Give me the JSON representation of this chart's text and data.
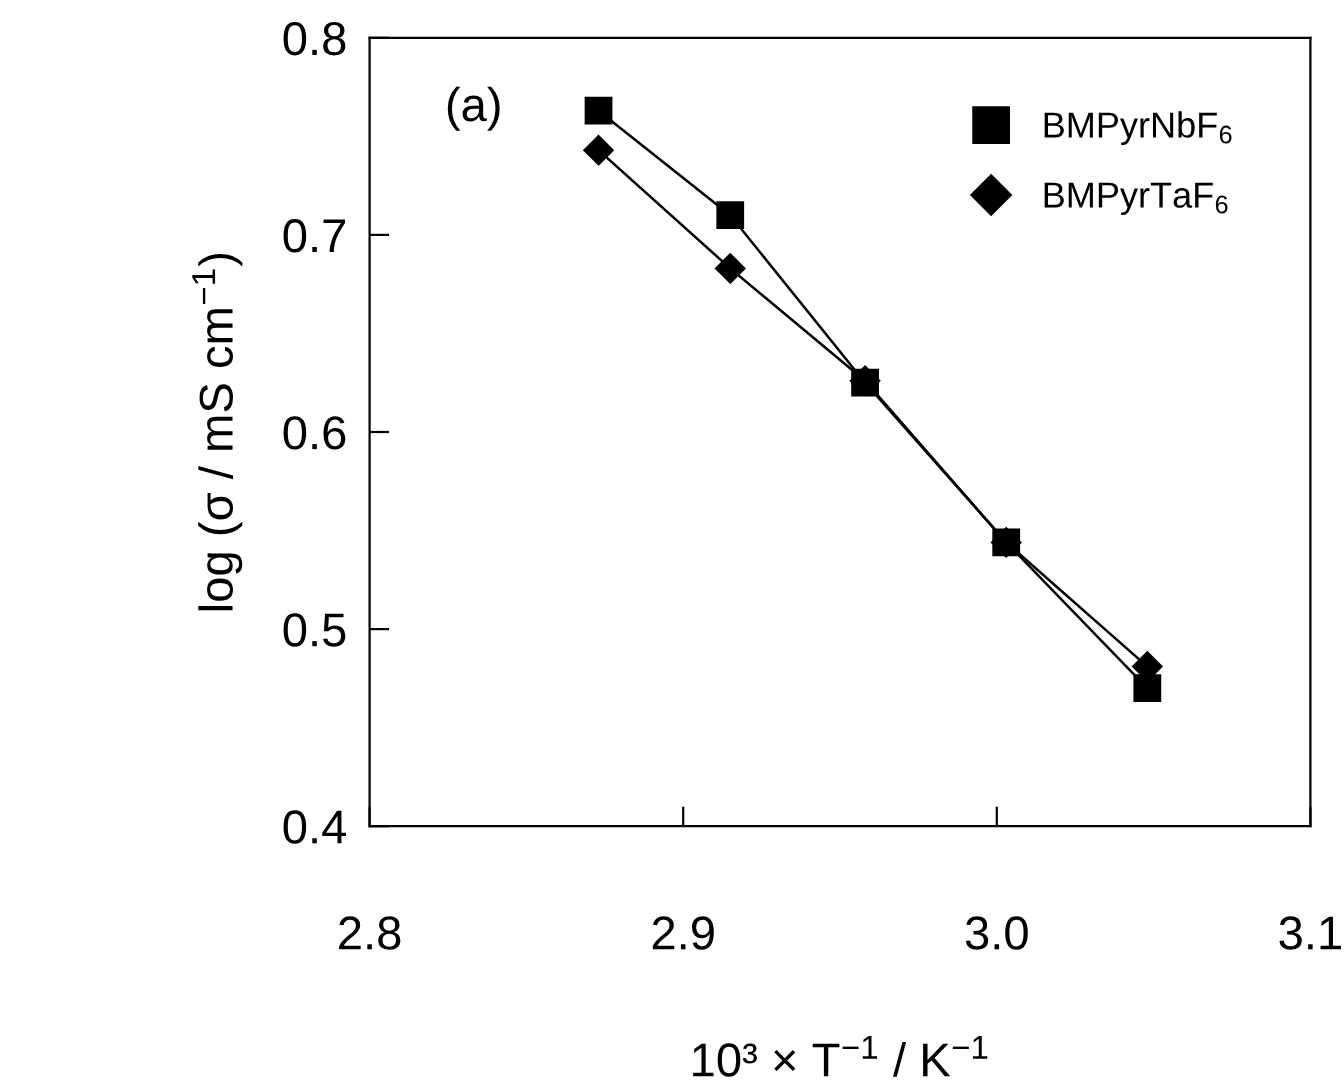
{
  "chart_data": {
    "type": "line",
    "xlabel": "10³ × T$^{−1}$ / K$^{−1}$",
    "ylabel": "log (σ / mS cm$^{−1}$)",
    "annotations": [
      "(a)"
    ],
    "xlim": [
      2.8,
      3.1
    ],
    "xticks": [
      2.8,
      2.9,
      {
        "value": 3,
        "label": "3.0"
      },
      3.1
    ],
    "ylim": [
      0.4,
      0.8
    ],
    "yticks": [
      0.4,
      0.5,
      0.6,
      0.7,
      0.8
    ],
    "grid": false,
    "legend": "top right",
    "line_style": "solid",
    "series": [
      {
        "name": "BMPyrNbF$_{6}$",
        "color": "#000000",
        "marker": "square",
        "x": [
          2.873,
          2.915,
          2.958,
          3.003,
          3.048
        ],
        "values": [
          0.763,
          0.71,
          0.625,
          0.544,
          0.47
        ]
      },
      {
        "name": "BMPyrTaF$_{6}$",
        "color": "#000000",
        "marker": "diamond",
        "x": [
          2.873,
          2.915,
          2.958,
          3.003,
          3.048
        ],
        "values": [
          0.743,
          0.683,
          0.626,
          0.544,
          0.481
        ]
      }
    ]
  }
}
